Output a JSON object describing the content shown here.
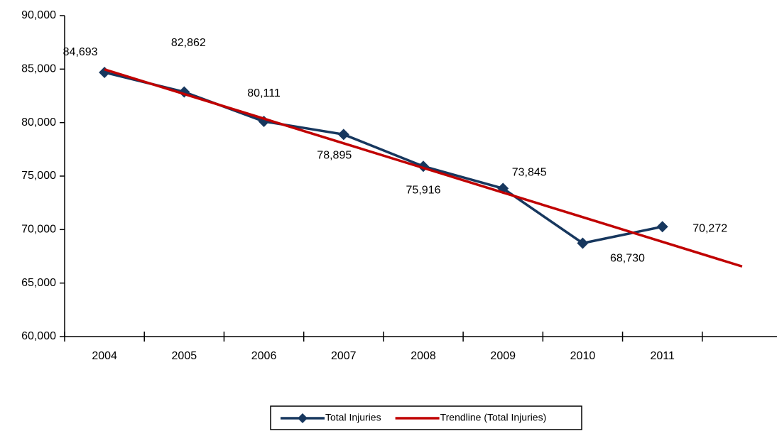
{
  "chart_data": {
    "type": "line",
    "categories": [
      "2004",
      "2005",
      "2006",
      "2007",
      "2008",
      "2009",
      "2010",
      "2011",
      null
    ],
    "series": [
      {
        "name": "Total Injuries",
        "color": "#17375e",
        "marker": "diamond",
        "values": [
          84693,
          82862,
          80111,
          78895,
          75916,
          73845,
          68730,
          70272,
          null
        ],
        "value_labels": [
          "84,693",
          "82,862",
          "80,111",
          "78,895",
          "75,916",
          "73,845",
          "68,730",
          "70,272",
          null
        ]
      },
      {
        "name": "Trendline (Total Injuries)",
        "color": "#c00000",
        "marker": "none",
        "values": [
          84973,
          82671,
          80369,
          78066,
          75764,
          73462,
          71160,
          68858,
          66555
        ]
      }
    ],
    "ylim": [
      60000,
      90000
    ],
    "yticks": [
      {
        "value": 60000,
        "label": "60,000"
      },
      {
        "value": 65000,
        "label": "65,000"
      },
      {
        "value": 70000,
        "label": "70,000"
      },
      {
        "value": 75000,
        "label": "75,000"
      },
      {
        "value": 80000,
        "label": "80,000"
      },
      {
        "value": 85000,
        "label": "85,000"
      },
      {
        "value": 90000,
        "label": "90,000"
      }
    ],
    "grid": false,
    "legend": "bottom"
  }
}
